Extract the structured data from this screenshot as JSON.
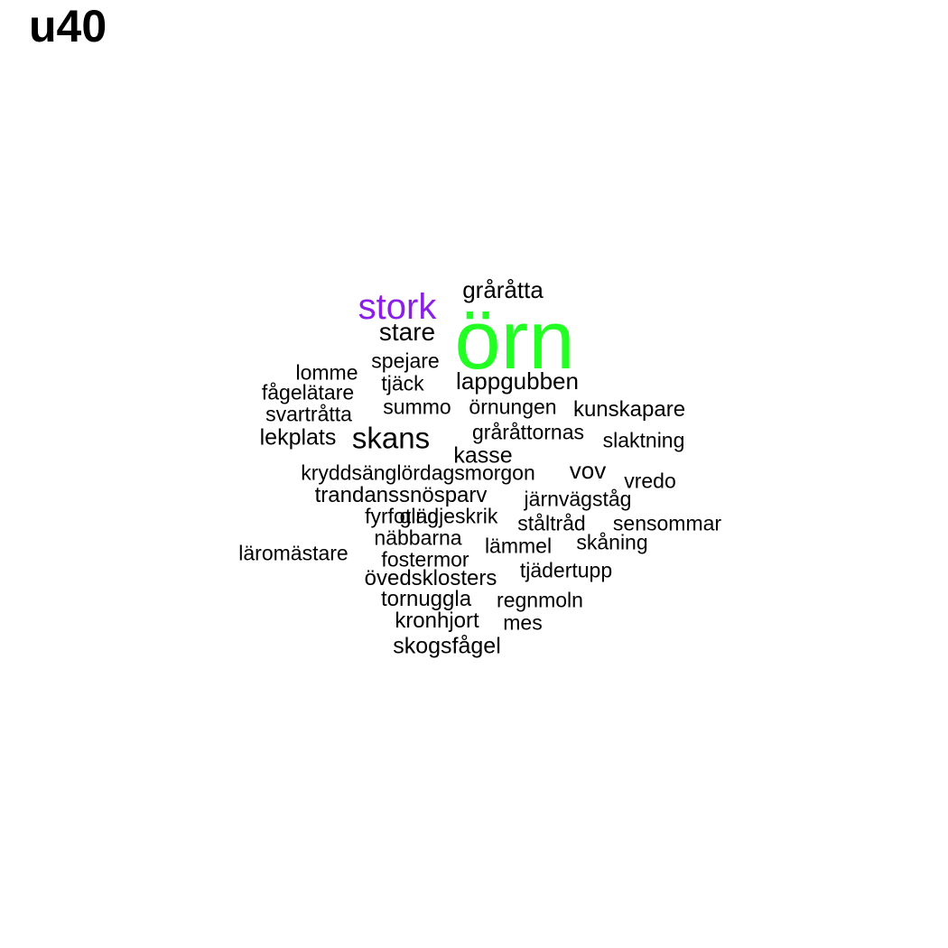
{
  "title": "u40",
  "colors": {
    "default": "#000000",
    "highlight_green": "#22ff22",
    "highlight_purple": "#8b1fe6"
  },
  "words": [
    {
      "text": "örn",
      "color": "highlight_green"
    },
    {
      "text": "stork",
      "color": "highlight_purple"
    },
    {
      "text": "gråråtta",
      "color": "default"
    },
    {
      "text": "stare",
      "color": "default"
    },
    {
      "text": "spejare",
      "color": "default"
    },
    {
      "text": "lomme",
      "color": "default"
    },
    {
      "text": "tjäck",
      "color": "default"
    },
    {
      "text": "lappgubben",
      "color": "default"
    },
    {
      "text": "fågelätare",
      "color": "default"
    },
    {
      "text": "summo",
      "color": "default"
    },
    {
      "text": "örnungen",
      "color": "default"
    },
    {
      "text": "kunskapare",
      "color": "default"
    },
    {
      "text": "svartråtta",
      "color": "default"
    },
    {
      "text": "gråråttornas",
      "color": "default"
    },
    {
      "text": "lekplats",
      "color": "default"
    },
    {
      "text": "skans",
      "color": "default"
    },
    {
      "text": "slaktning",
      "color": "default"
    },
    {
      "text": "kasse",
      "color": "default"
    },
    {
      "text": "kryddsänglördagsmorgon",
      "color": "default"
    },
    {
      "text": "vov",
      "color": "default"
    },
    {
      "text": "vredo",
      "color": "default"
    },
    {
      "text": "trandanssnösparv",
      "color": "default"
    },
    {
      "text": "järnvägståg",
      "color": "default"
    },
    {
      "text": "fyrfoting",
      "color": "default"
    },
    {
      "text": "glädjeskrik",
      "color": "default"
    },
    {
      "text": "ståltråd",
      "color": "default"
    },
    {
      "text": "sensommar",
      "color": "default"
    },
    {
      "text": "näbbarna",
      "color": "default"
    },
    {
      "text": "skåning",
      "color": "default"
    },
    {
      "text": "läromästare",
      "color": "default"
    },
    {
      "text": "lämmel",
      "color": "default"
    },
    {
      "text": "fostermor",
      "color": "default"
    },
    {
      "text": "tjädertupp",
      "color": "default"
    },
    {
      "text": "övedsklosters",
      "color": "default"
    },
    {
      "text": "tornuggla",
      "color": "default"
    },
    {
      "text": "regnmoln",
      "color": "default"
    },
    {
      "text": "kronhjort",
      "color": "default"
    },
    {
      "text": "mes",
      "color": "default"
    },
    {
      "text": "skogsfågel",
      "color": "default"
    }
  ]
}
